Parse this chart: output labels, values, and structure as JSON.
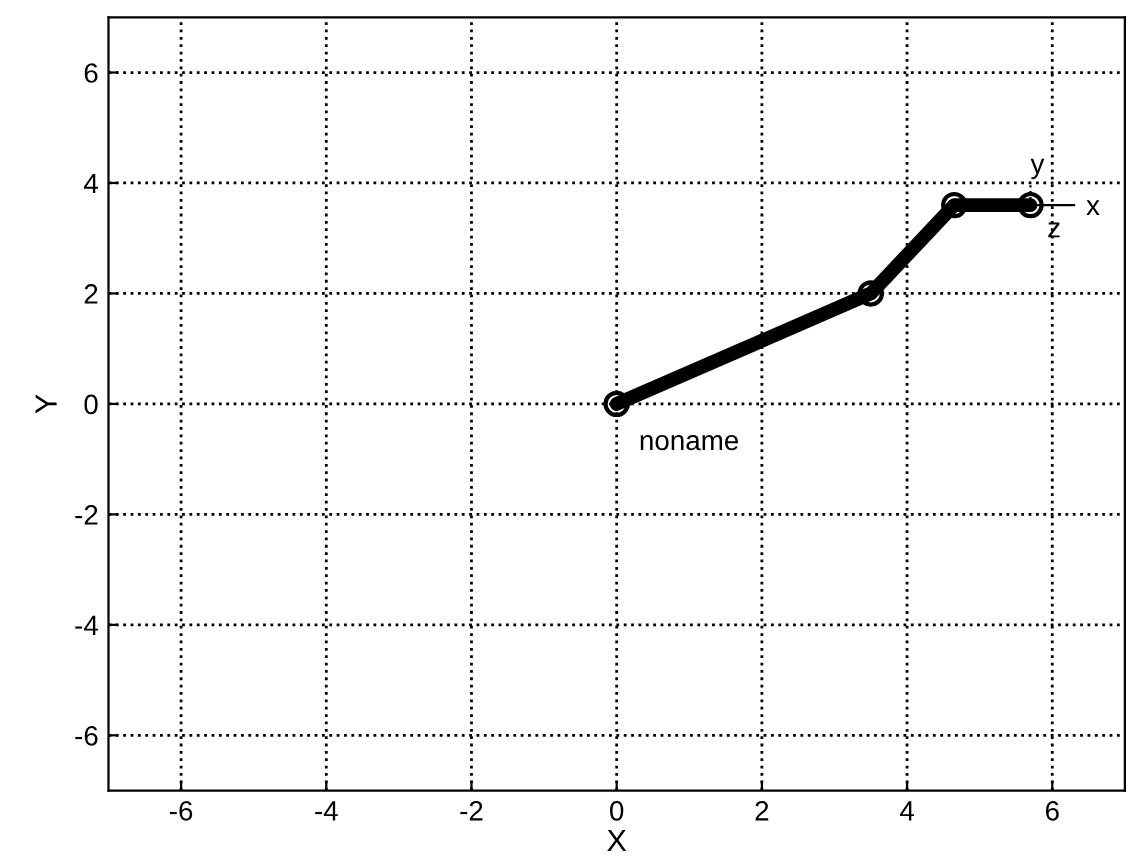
{
  "chart_data": {
    "type": "line",
    "xlabel": "X",
    "ylabel": "Y",
    "x": [
      0,
      3.5,
      4.65,
      5.7
    ],
    "series": [
      {
        "color": "#000000",
        "values": [
          0,
          2.0,
          3.6,
          3.6
        ]
      }
    ],
    "marker": "circle",
    "line_style": "solid",
    "grid": true,
    "xlim": [
      -7,
      7
    ],
    "ylim": [
      -7,
      7
    ],
    "xticks": [
      -6,
      -4,
      -2,
      0,
      2,
      4,
      6
    ],
    "yticks": [
      -6,
      -4,
      -2,
      0,
      2,
      4,
      6
    ],
    "annotations": [
      "noname",
      "x",
      "y",
      "z"
    ]
  }
}
